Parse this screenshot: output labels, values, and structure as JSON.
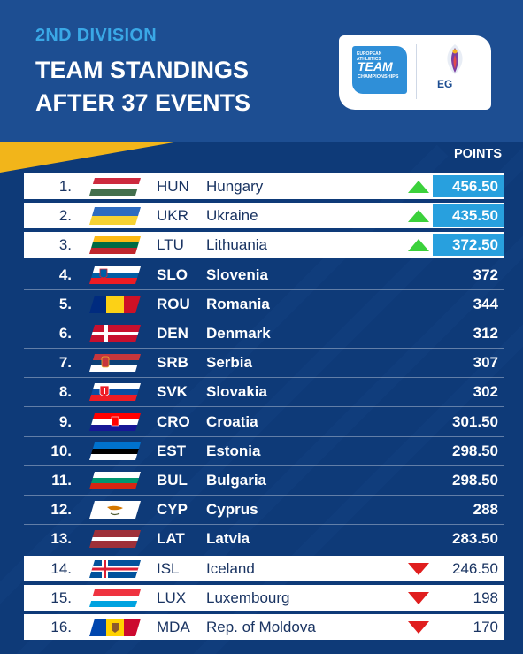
{
  "header": {
    "division": "2ND DIVISION",
    "title_line1": "TEAM STANDINGS",
    "title_line2": "AFTER 37 EVENTS",
    "logo_top": "EUROPEAN ATHLETICS",
    "logo_main": "TEAM",
    "logo_sub": "CHAMPIONSHIPS",
    "logo_ego": "EG"
  },
  "points_label": "POINTS",
  "colors": {
    "header_bg": "#1d4e92",
    "body_bg": "#0e3a78",
    "accent_blue": "#28a0de",
    "up_arrow": "#3bd13b",
    "down_arrow": "#e01e1e"
  },
  "rows": [
    {
      "rank": "1.",
      "code": "HUN",
      "name": "Hungary",
      "points": "456.50",
      "trend": "up",
      "flag": "hungary-flag"
    },
    {
      "rank": "2.",
      "code": "UKR",
      "name": "Ukraine",
      "points": "435.50",
      "trend": "up",
      "flag": "ukraine-flag"
    },
    {
      "rank": "3.",
      "code": "LTU",
      "name": "Lithuania",
      "points": "372.50",
      "trend": "up",
      "flag": "lithuania-flag"
    },
    {
      "rank": "4.",
      "code": "SLO",
      "name": "Slovenia",
      "points": "372",
      "trend": "none",
      "flag": "slovenia-flag"
    },
    {
      "rank": "5.",
      "code": "ROU",
      "name": "Romania",
      "points": "344",
      "trend": "none",
      "flag": "romania-flag"
    },
    {
      "rank": "6.",
      "code": "DEN",
      "name": "Denmark",
      "points": "312",
      "trend": "none",
      "flag": "denmark-flag"
    },
    {
      "rank": "7.",
      "code": "SRB",
      "name": "Serbia",
      "points": "307",
      "trend": "none",
      "flag": "serbia-flag"
    },
    {
      "rank": "8.",
      "code": "SVK",
      "name": "Slovakia",
      "points": "302",
      "trend": "none",
      "flag": "slovakia-flag"
    },
    {
      "rank": "9.",
      "code": "CRO",
      "name": "Croatia",
      "points": "301.50",
      "trend": "none",
      "flag": "croatia-flag"
    },
    {
      "rank": "10.",
      "code": "EST",
      "name": "Estonia",
      "points": "298.50",
      "trend": "none",
      "flag": "estonia-flag"
    },
    {
      "rank": "11.",
      "code": "BUL",
      "name": "Bulgaria",
      "points": "298.50",
      "trend": "none",
      "flag": "bulgaria-flag"
    },
    {
      "rank": "12.",
      "code": "CYP",
      "name": "Cyprus",
      "points": "288",
      "trend": "none",
      "flag": "cyprus-flag"
    },
    {
      "rank": "13.",
      "code": "LAT",
      "name": "Latvia",
      "points": "283.50",
      "trend": "none",
      "flag": "latvia-flag"
    },
    {
      "rank": "14.",
      "code": "ISL",
      "name": "Iceland",
      "points": "246.50",
      "trend": "down",
      "flag": "iceland-flag"
    },
    {
      "rank": "15.",
      "code": "LUX",
      "name": "Luxembourg",
      "points": "198",
      "trend": "down",
      "flag": "luxembourg-flag"
    },
    {
      "rank": "16.",
      "code": "MDA",
      "name": "Rep. of Moldova",
      "points": "170",
      "trend": "down",
      "flag": "moldova-flag"
    }
  ]
}
